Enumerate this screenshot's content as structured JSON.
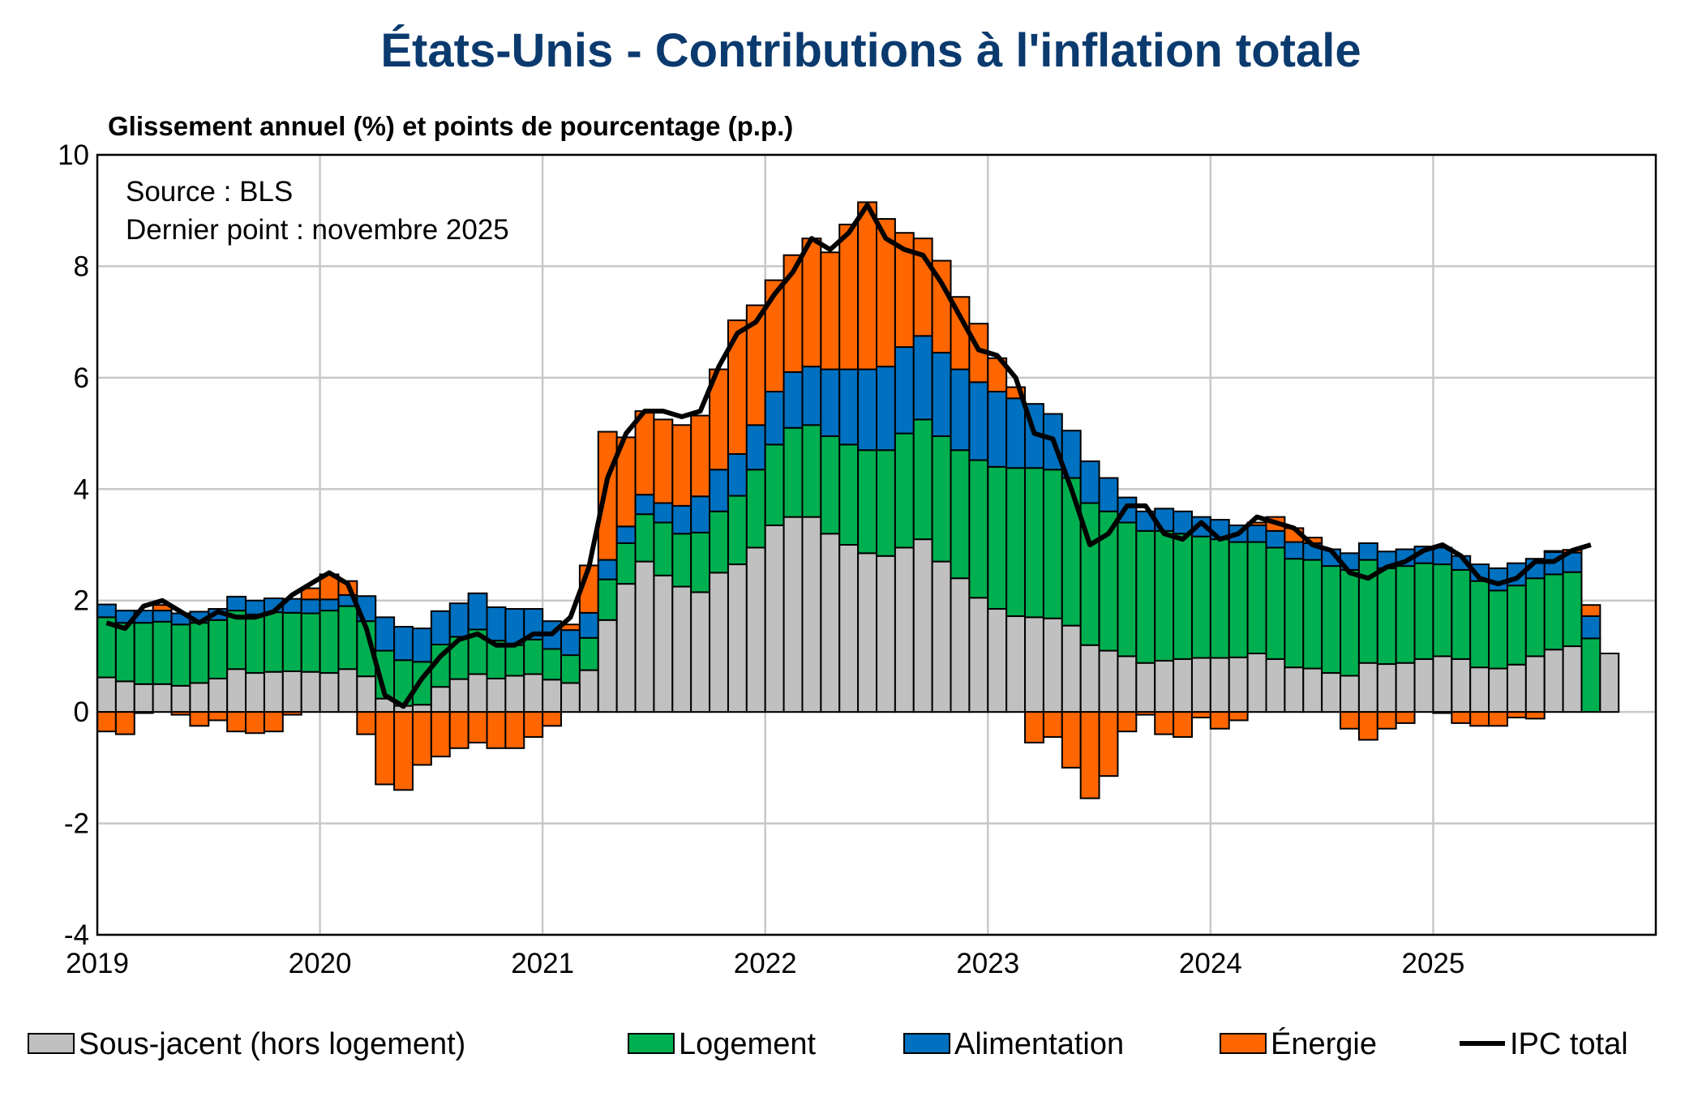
{
  "chart_data": {
    "type": "bar",
    "stacked": true,
    "title": "États-Unis - Contributions à l'inflation totale",
    "subtitle": "Glissement annuel (%) et points de pourcentage (p.p.)",
    "notes": [
      "Source : BLS",
      "Dernier point : novembre 2025"
    ],
    "xlabel": "",
    "ylabel": "",
    "ylim": [
      -4,
      10
    ],
    "yticks": [
      "10",
      "8",
      "6",
      "4",
      "2",
      "0",
      "-2",
      "-4"
    ],
    "xticks": [
      "2019",
      "2020",
      "2021",
      "2022",
      "2023",
      "2024",
      "2025"
    ],
    "x_start": "2019-01",
    "x_end": "2025-11",
    "frequency": "monthly",
    "grid": true,
    "legend_position": "bottom",
    "series": [
      {
        "name": "Sous-jacent (hors logement)",
        "type": "bar",
        "color": "#c0c0c0",
        "values": [
          0.62,
          0.55,
          0.5,
          0.5,
          0.47,
          0.52,
          0.6,
          0.77,
          0.7,
          0.72,
          0.73,
          0.72,
          0.7,
          0.77,
          0.64,
          0.24,
          0.11,
          0.13,
          0.45,
          0.59,
          0.68,
          0.6,
          0.65,
          0.68,
          0.58,
          0.52,
          0.75,
          1.65,
          2.3,
          2.7,
          2.45,
          2.25,
          2.15,
          2.5,
          2.65,
          2.95,
          3.35,
          3.5,
          3.5,
          3.2,
          3.0,
          2.85,
          2.8,
          2.95,
          3.1,
          2.7,
          2.4,
          2.05,
          1.85,
          1.72,
          1.7,
          1.68,
          1.55,
          1.2,
          1.1,
          1.0,
          0.88,
          0.92,
          0.95,
          0.97,
          0.97,
          0.98,
          1.05,
          0.95,
          0.8,
          0.78,
          0.7,
          0.65,
          0.88,
          0.86,
          0.88,
          0.95,
          1.0,
          0.95,
          0.8,
          0.78,
          0.85,
          1.0,
          1.12,
          1.18,
          null,
          1.05
        ]
      },
      {
        "name": "Logement",
        "type": "bar",
        "color": "#00b050",
        "values": [
          1.08,
          1.05,
          1.1,
          1.12,
          1.1,
          1.08,
          1.05,
          1.05,
          1.05,
          1.07,
          1.05,
          1.05,
          1.12,
          1.13,
          0.99,
          0.86,
          0.82,
          0.77,
          0.76,
          0.76,
          0.8,
          0.68,
          0.55,
          0.62,
          0.55,
          0.5,
          0.58,
          0.73,
          0.73,
          0.85,
          0.95,
          0.95,
          1.07,
          1.1,
          1.23,
          1.4,
          1.45,
          1.6,
          1.65,
          1.75,
          1.8,
          1.85,
          1.9,
          2.05,
          2.15,
          2.25,
          2.3,
          2.47,
          2.55,
          2.66,
          2.68,
          2.67,
          2.65,
          2.55,
          2.5,
          2.4,
          2.37,
          2.33,
          2.25,
          2.18,
          2.13,
          2.07,
          2.0,
          2.0,
          1.95,
          1.95,
          1.92,
          1.9,
          1.85,
          1.72,
          1.74,
          1.72,
          1.65,
          1.6,
          1.55,
          1.4,
          1.42,
          1.4,
          1.35,
          1.33,
          1.32,
          null,
          1.1
        ]
      },
      {
        "name": "Alimentation",
        "type": "bar",
        "color": "#0070c0",
        "values": [
          0.23,
          0.22,
          0.22,
          0.2,
          0.2,
          0.2,
          0.2,
          0.25,
          0.25,
          0.25,
          0.25,
          0.25,
          0.2,
          0.2,
          0.45,
          0.6,
          0.6,
          0.6,
          0.6,
          0.6,
          0.65,
          0.6,
          0.65,
          0.55,
          0.5,
          0.45,
          0.45,
          0.35,
          0.3,
          0.35,
          0.35,
          0.5,
          0.65,
          0.75,
          0.75,
          0.8,
          0.95,
          1.0,
          1.05,
          1.2,
          1.35,
          1.45,
          1.5,
          1.55,
          1.5,
          1.5,
          1.45,
          1.4,
          1.35,
          1.25,
          1.15,
          1.0,
          0.85,
          0.75,
          0.6,
          0.45,
          0.35,
          0.4,
          0.4,
          0.35,
          0.35,
          0.3,
          0.3,
          0.3,
          0.3,
          0.3,
          0.3,
          0.3,
          0.3,
          0.3,
          0.3,
          0.3,
          0.3,
          0.25,
          0.3,
          0.4,
          0.4,
          0.35,
          0.4,
          0.35,
          0.4,
          null,
          0.35
        ]
      },
      {
        "name": "Énergie",
        "type": "bar",
        "color": "#ff6600",
        "values": [
          -0.35,
          -0.4,
          -0.02,
          0.1,
          -0.05,
          -0.25,
          -0.15,
          -0.35,
          -0.38,
          -0.35,
          -0.05,
          0.2,
          0.45,
          0.25,
          -0.4,
          -1.3,
          -1.4,
          -0.95,
          -0.8,
          -0.65,
          -0.55,
          -0.65,
          -0.65,
          -0.45,
          -0.25,
          0.1,
          0.85,
          2.3,
          1.6,
          1.5,
          1.5,
          1.45,
          1.45,
          1.8,
          2.4,
          2.15,
          2.0,
          2.1,
          2.3,
          2.1,
          2.6,
          3.0,
          2.65,
          2.05,
          1.75,
          1.65,
          1.3,
          1.05,
          0.6,
          0.2,
          -0.55,
          -0.45,
          -1.0,
          -1.55,
          -1.15,
          -0.35,
          -0.05,
          -0.4,
          -0.45,
          -0.1,
          -0.3,
          -0.15,
          0.05,
          0.25,
          0.25,
          0.1,
          0.0,
          -0.3,
          -0.5,
          -0.3,
          -0.2,
          0.0,
          -0.02,
          -0.2,
          -0.25,
          -0.25,
          -0.1,
          -0.12,
          0.02,
          0.05,
          0.2,
          null,
          0.25
        ]
      },
      {
        "name": "IPC total",
        "type": "line",
        "color": "#000000",
        "values": [
          1.6,
          1.5,
          1.9,
          2.0,
          1.8,
          1.6,
          1.8,
          1.7,
          1.7,
          1.8,
          2.1,
          2.3,
          2.5,
          2.3,
          1.5,
          0.3,
          0.1,
          0.6,
          1.0,
          1.3,
          1.4,
          1.2,
          1.2,
          1.4,
          1.4,
          1.7,
          2.6,
          4.2,
          5.0,
          5.4,
          5.4,
          5.3,
          5.4,
          6.2,
          6.8,
          7.0,
          7.5,
          7.9,
          8.5,
          8.3,
          8.6,
          9.1,
          8.5,
          8.3,
          8.2,
          7.7,
          7.1,
          6.5,
          6.4,
          6.0,
          5.0,
          4.9,
          4.0,
          3.0,
          3.2,
          3.7,
          3.7,
          3.2,
          3.1,
          3.4,
          3.1,
          3.2,
          3.5,
          3.4,
          3.3,
          3.0,
          2.9,
          2.5,
          2.4,
          2.6,
          2.7,
          2.9,
          3.0,
          2.8,
          2.4,
          2.3,
          2.4,
          2.7,
          2.7,
          2.9,
          3.0,
          null,
          null
        ]
      }
    ]
  }
}
